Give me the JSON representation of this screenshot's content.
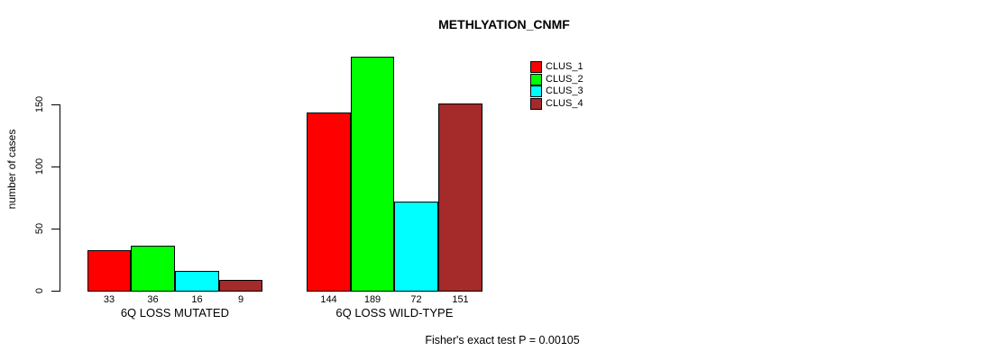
{
  "chart_data": {
    "type": "bar",
    "title": "METHLYATION_CNMF",
    "ylabel": "number of cases",
    "xlabel": "",
    "ylim": [
      0,
      150
    ],
    "yticks": [
      0,
      50,
      100,
      150
    ],
    "grid": false,
    "legend_position": "top-right",
    "categories": [
      "6Q LOSS MUTATED",
      "6Q LOSS WILD-TYPE"
    ],
    "series": [
      {
        "name": "CLUS_1",
        "color": "#ff0000",
        "values": [
          33,
          144
        ]
      },
      {
        "name": "CLUS_2",
        "color": "#00ff00",
        "values": [
          36,
          189
        ]
      },
      {
        "name": "CLUS_3",
        "color": "#00ffff",
        "values": [
          16,
          72
        ]
      },
      {
        "name": "CLUS_4",
        "color": "#a52a2a",
        "values": [
          9,
          151
        ]
      }
    ],
    "bar_value_labels": [
      [
        33,
        36,
        16,
        9
      ],
      [
        144,
        189,
        72,
        151
      ]
    ]
  },
  "legend": {
    "items": [
      {
        "label": "CLUS_1",
        "color": "#ff0000"
      },
      {
        "label": "CLUS_2",
        "color": "#00ff00"
      },
      {
        "label": "CLUS_3",
        "color": "#00ffff"
      },
      {
        "label": "CLUS_4",
        "color": "#a52a2a"
      }
    ]
  },
  "footer": "Fisher's exact test P = 0.00105",
  "colors": {
    "background": "#ffffff",
    "axis": "#000000",
    "text": "#000000"
  }
}
